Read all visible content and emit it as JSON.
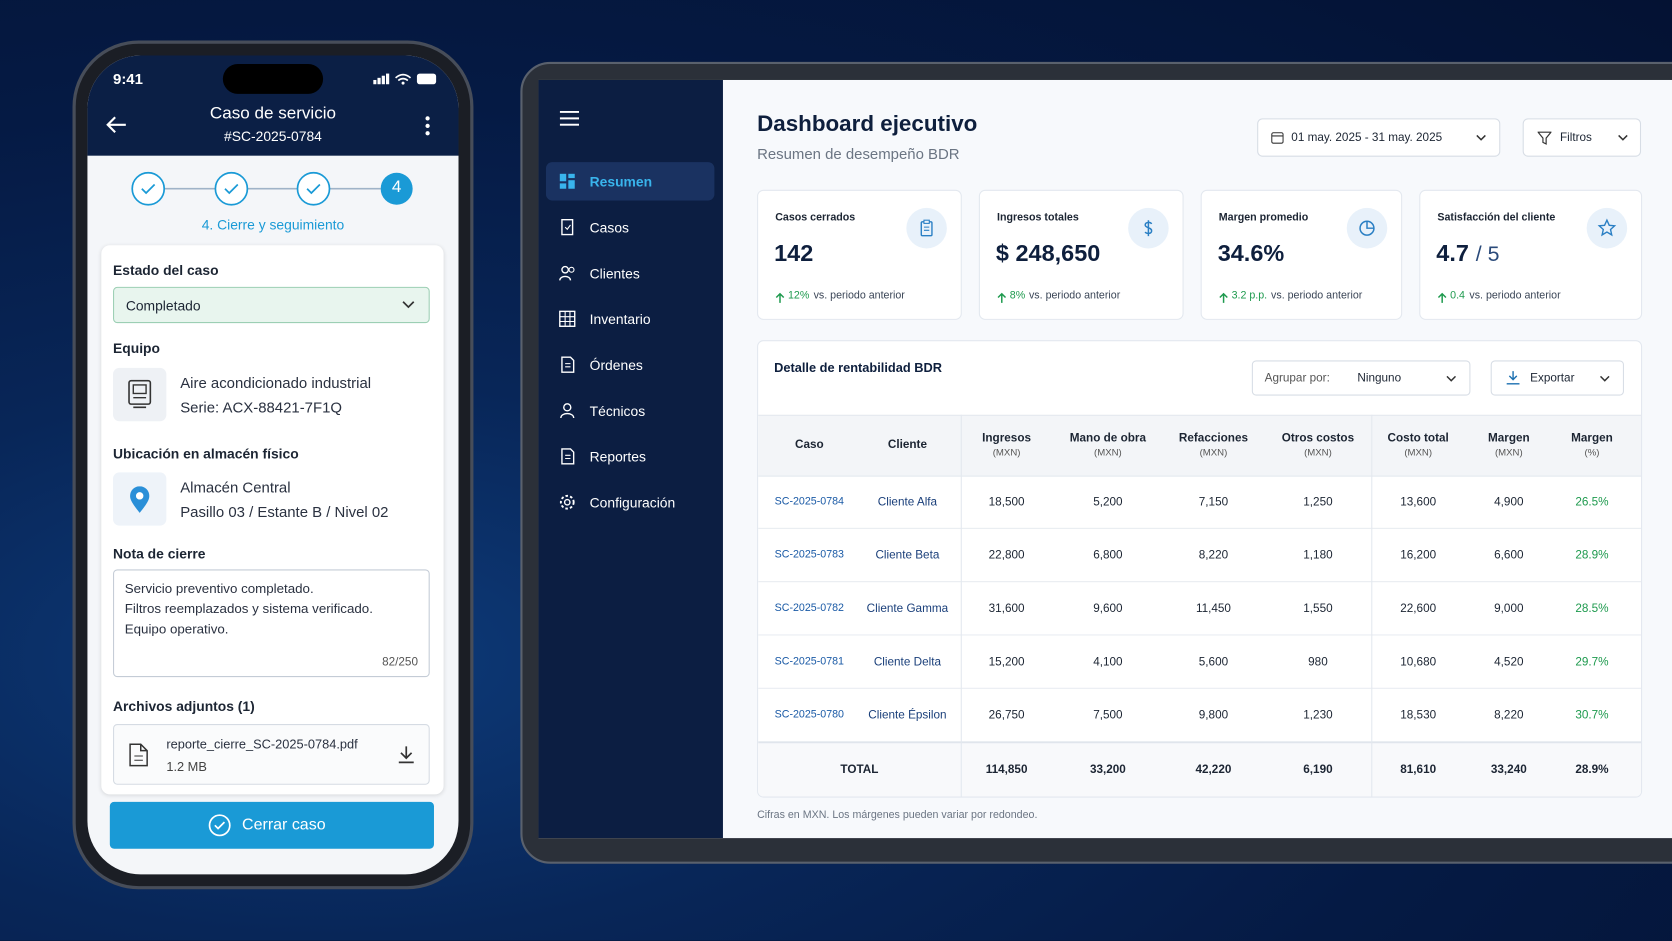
{
  "phone": {
    "status_time": "9:41",
    "title": "Caso de servicio",
    "case_id": "#SC-2025-0784",
    "step_number": "4",
    "step_label": "4. Cierre y seguimiento",
    "status_label": "Estado del caso",
    "status_value": "Completado",
    "equipment_label": "Equipo",
    "equipment_name": "Aire acondicionado industrial",
    "equipment_serial": "Serie: ACX-88421-7F1Q",
    "location_label": "Ubicación en almacén físico",
    "location_name": "Almacén Central",
    "location_detail": "Pasillo 03 / Estante B / Nivel 02",
    "note_label": "Nota de cierre",
    "note_lines": [
      "Servicio preventivo completado.",
      "Filtros reemplazados y sistema verificado.",
      "Equipo operativo."
    ],
    "note_count": "82/250",
    "attachments_label": "Archivos adjuntos (1)",
    "file_name": "reporte_cierre_SC-2025-0784.pdf",
    "file_size": "1.2 MB",
    "close_button": "Cerrar caso"
  },
  "sidebar": {
    "items": [
      "Resumen",
      "Casos",
      "Clientes",
      "Inventario",
      "Órdenes",
      "Técnicos",
      "Reportes",
      "Configuración"
    ]
  },
  "dashboard": {
    "title": "Dashboard ejecutivo",
    "subtitle": "Resumen de desempeño BDR",
    "date_range": "01 may. 2025 - 31 may. 2025",
    "filters": "Filtros",
    "kpis": [
      {
        "label": "Casos cerrados",
        "value": "142",
        "delta": "12%",
        "delta_text": "vs. periodo anterior"
      },
      {
        "label": "Ingresos totales",
        "value": "$ 248,650",
        "delta": "8%",
        "delta_text": "vs. periodo anterior"
      },
      {
        "label": "Margen promedio",
        "value": "34.6%",
        "delta": "3.2 p.p.",
        "delta_text": "vs. periodo anterior"
      },
      {
        "label": "Satisfacción del cliente",
        "value": "4.7",
        "value_suffix": "/ 5",
        "delta": "0.4",
        "delta_text": "vs. periodo anterior"
      }
    ],
    "table": {
      "title": "Detalle de rentabilidad BDR",
      "group_label": "Agrupar por:",
      "group_value": "Ninguno",
      "export": "Exportar",
      "columns": [
        {
          "name": "Caso"
        },
        {
          "name": "Cliente"
        },
        {
          "name": "Ingresos",
          "unit": "(MXN)"
        },
        {
          "name": "Mano de obra",
          "unit": "(MXN)"
        },
        {
          "name": "Refacciones",
          "unit": "(MXN)"
        },
        {
          "name": "Otros costos",
          "unit": "(MXN)"
        },
        {
          "name": "Costo total",
          "unit": "(MXN)"
        },
        {
          "name": "Margen",
          "unit": "(MXN)"
        },
        {
          "name": "Margen",
          "unit": "(%)"
        }
      ],
      "rows": [
        [
          "SC-2025-0784",
          "Cliente Alfa",
          "18,500",
          "5,200",
          "7,150",
          "1,250",
          "13,600",
          "4,900",
          "26.5%"
        ],
        [
          "SC-2025-0783",
          "Cliente Beta",
          "22,800",
          "6,800",
          "8,220",
          "1,180",
          "16,200",
          "6,600",
          "28.9%"
        ],
        [
          "SC-2025-0782",
          "Cliente Gamma",
          "31,600",
          "9,600",
          "11,450",
          "1,550",
          "22,600",
          "9,000",
          "28.5%"
        ],
        [
          "SC-2025-0781",
          "Cliente Delta",
          "15,200",
          "4,100",
          "5,600",
          "980",
          "10,680",
          "4,520",
          "29.7%"
        ],
        [
          "SC-2025-0780",
          "Cliente Épsilon",
          "26,750",
          "7,500",
          "9,800",
          "1,230",
          "18,530",
          "8,220",
          "30.7%"
        ]
      ],
      "total": [
        "TOTAL",
        "114,850",
        "33,200",
        "42,220",
        "6,190",
        "81,610",
        "33,240",
        "28.9%"
      ]
    },
    "footnote": "Cifras en MXN. Los márgenes pueden variar por redondeo."
  }
}
